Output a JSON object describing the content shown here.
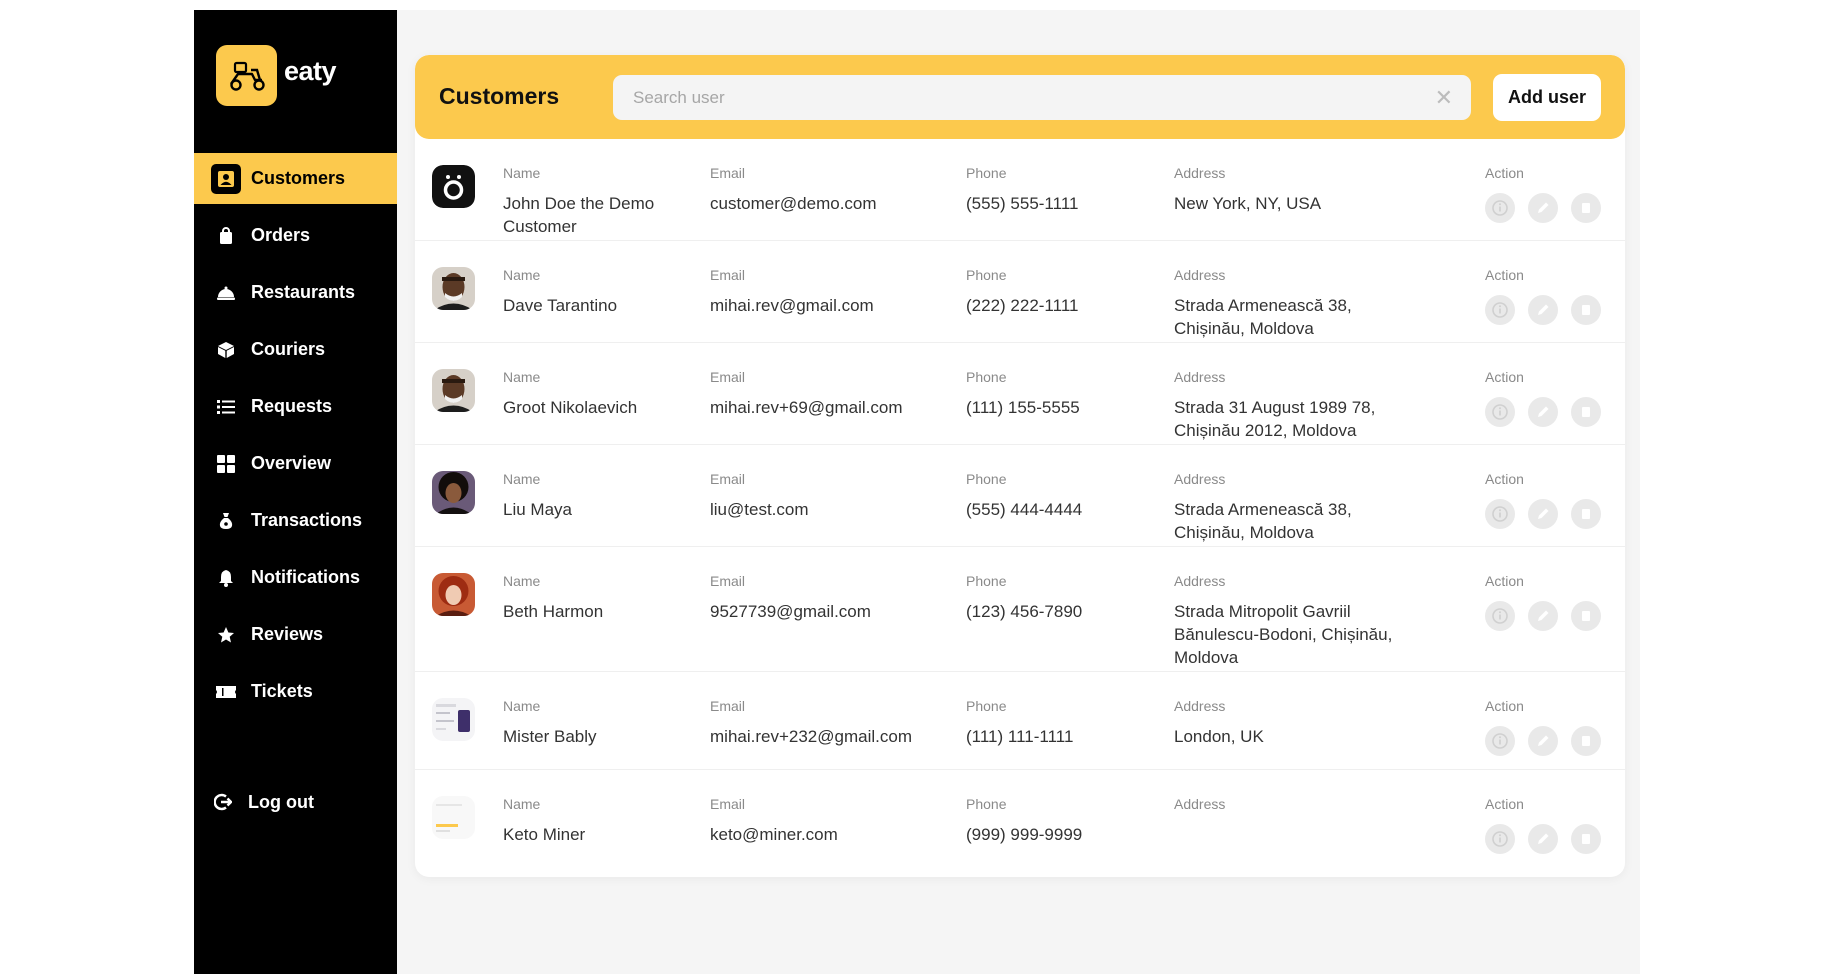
{
  "brand": {
    "name": "eaty",
    "accent": "#fcc94d"
  },
  "sidebar": {
    "items": [
      {
        "label": "Customers",
        "icon": "user-icon",
        "active": true
      },
      {
        "label": "Orders",
        "icon": "bag-icon"
      },
      {
        "label": "Restaurants",
        "icon": "cloche-icon"
      },
      {
        "label": "Couriers",
        "icon": "box-icon"
      },
      {
        "label": "Requests",
        "icon": "list-icon"
      },
      {
        "label": "Overview",
        "icon": "grid-icon"
      },
      {
        "label": "Transactions",
        "icon": "money-bag-icon"
      },
      {
        "label": "Notifications",
        "icon": "bell-icon"
      },
      {
        "label": "Reviews",
        "icon": "star-icon"
      },
      {
        "label": "Tickets",
        "icon": "ticket-icon"
      }
    ],
    "logout_label": "Log out"
  },
  "header": {
    "title": "Customers",
    "search_placeholder": "Search user",
    "add_label": "Add user"
  },
  "table": {
    "labels": {
      "name": "Name",
      "email": "Email",
      "phone": "Phone",
      "address": "Address",
      "action": "Action"
    },
    "rows": [
      {
        "name": "John Doe the Demo Customer",
        "email": "customer@demo.com",
        "phone": "(555) 555-1111",
        "address": "New York, NY, USA",
        "avatar": "brand-logo"
      },
      {
        "name": "Dave Tarantino",
        "email": "mihai.rev@gmail.com",
        "phone": "(222) 222-1111",
        "address": "Strada Armenească 38, Chișinău, Moldova",
        "avatar": "photo-man"
      },
      {
        "name": "Groot Nikolaevich",
        "email": "mihai.rev+69@gmail.com",
        "phone": "(111) 155-5555",
        "address": "Strada 31 August 1989 78, Chișinău 2012, Moldova",
        "avatar": "photo-man"
      },
      {
        "name": "Liu Maya",
        "email": "liu@test.com",
        "phone": "(555) 444-4444",
        "address": "Strada Armenească 38, Chișinău, Moldova",
        "avatar": "photo-woman"
      },
      {
        "name": "Beth Harmon",
        "email": "9527739@gmail.com",
        "phone": "(123) 456-7890",
        "address": "Strada Mitropolit Gavriil Bănulescu-Bodoni, Chișinău, Moldova",
        "avatar": "photo-woman-red"
      },
      {
        "name": "Mister Bably",
        "email": "mihai.rev+232@gmail.com",
        "phone": "(111) 111-1111",
        "address": "London, UK",
        "avatar": "screenshot"
      },
      {
        "name": "Keto Miner",
        "email": "keto@miner.com",
        "phone": "(999) 999-9999",
        "address": "",
        "avatar": "screenshot-light"
      }
    ]
  }
}
